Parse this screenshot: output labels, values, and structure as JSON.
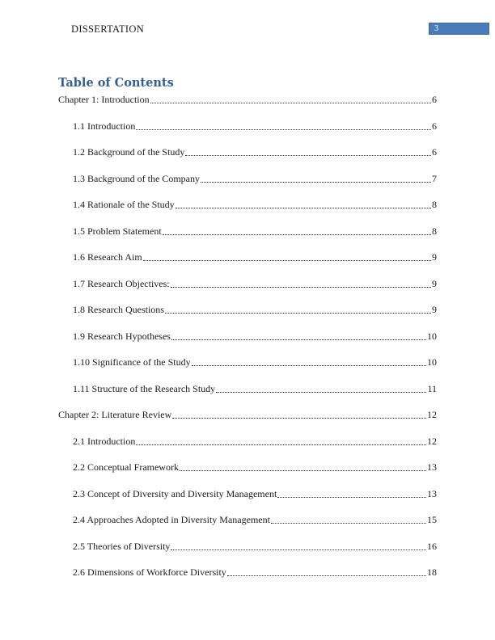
{
  "header": {
    "running_head": "DISSERTATION",
    "page_number": "3"
  },
  "toc": {
    "title": "Table of Contents",
    "entries": [
      {
        "label": "Chapter 1: Introduction",
        "page": "6",
        "level": 0
      },
      {
        "label": "1.1 Introduction",
        "page": "6",
        "level": 1
      },
      {
        "label": "1.2 Background of the Study",
        "page": "6",
        "level": 1
      },
      {
        "label": "1.3 Background of the Company",
        "page": "7",
        "level": 1
      },
      {
        "label": "1.4 Rationale of the Study",
        "page": "8",
        "level": 1
      },
      {
        "label": "1.5 Problem Statement",
        "page": "8",
        "level": 1
      },
      {
        "label": "1.6 Research Aim",
        "page": "9",
        "level": 1
      },
      {
        "label": "1.7 Research Objectives:",
        "page": "9",
        "level": 1
      },
      {
        "label": "1.8 Research Questions",
        "page": "9",
        "level": 1
      },
      {
        "label": "1.9 Research Hypotheses",
        "page": "10",
        "level": 1
      },
      {
        "label": "1.10 Significance of the Study",
        "page": "10",
        "level": 1
      },
      {
        "label": "1.11 Structure of the Research Study",
        "page": "11",
        "level": 1
      },
      {
        "label": "Chapter 2: Literature Review",
        "page": "12",
        "level": 0
      },
      {
        "label": "2.1 Introduction",
        "page": "12",
        "level": 1
      },
      {
        "label": "2.2 Conceptual Framework",
        "page": "13",
        "level": 1
      },
      {
        "label": "2.3 Concept of Diversity and Diversity Management",
        "page": "13",
        "level": 1
      },
      {
        "label": "2.4 Approaches Adopted in Diversity Management",
        "page": "15",
        "level": 1
      },
      {
        "label": "2.5 Theories of Diversity",
        "page": "16",
        "level": 1
      },
      {
        "label": "2.6 Dimensions of Workforce Diversity",
        "page": "18",
        "level": 1
      }
    ]
  },
  "colors": {
    "heading": "#365f91",
    "page_badge_bg": "#4a7cba",
    "page_badge_border": "#41699c",
    "text": "#1b1b1b"
  }
}
